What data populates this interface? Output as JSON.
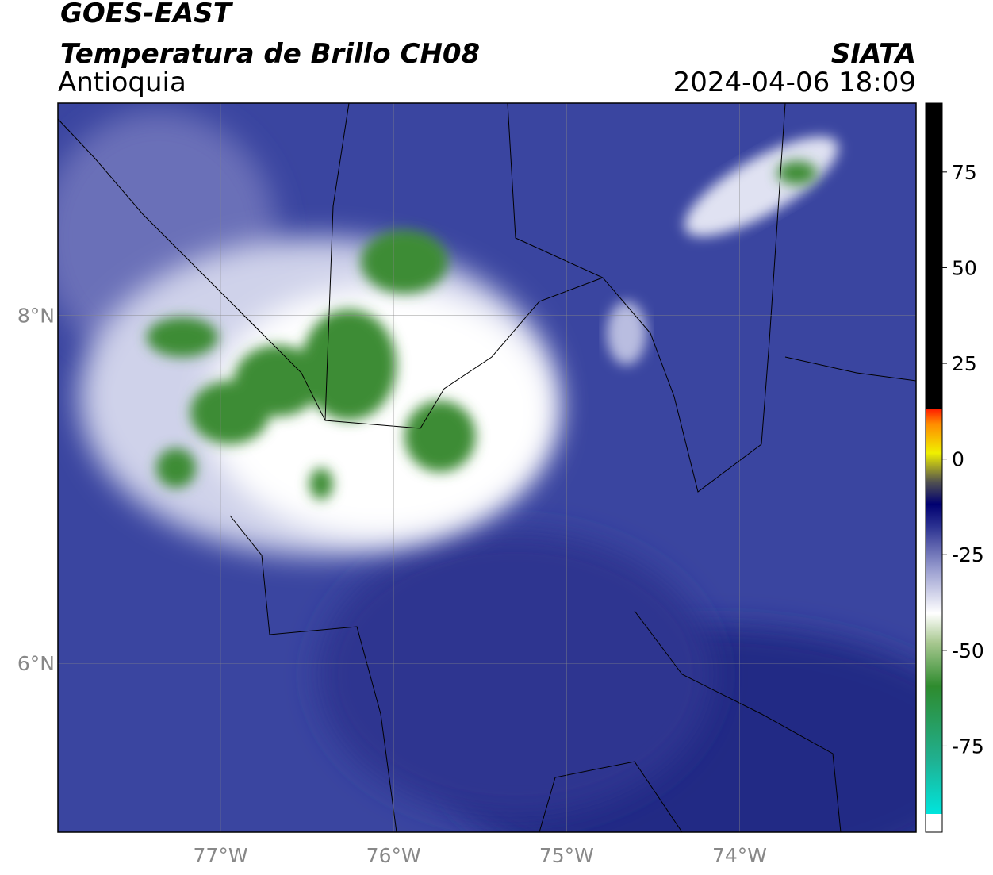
{
  "chart_data": {
    "type": "map",
    "title": "GOES-EAST",
    "subtitle": "Temperatura de Brillo CH08",
    "region": "Antioquia",
    "source": "SIATA",
    "datetime": "2024-04-06 18:09",
    "xlim": [
      -77.94,
      -72.98
    ],
    "ylim": [
      5.03,
      9.22
    ],
    "xticks": [
      {
        "value": -77,
        "label": "77°W"
      },
      {
        "value": -76,
        "label": "76°W"
      },
      {
        "value": -75,
        "label": "75°W"
      },
      {
        "value": -74,
        "label": "74°W"
      }
    ],
    "yticks": [
      {
        "value": 6,
        "label": "6°N"
      },
      {
        "value": 8,
        "label": "8°N"
      }
    ],
    "grid": true,
    "colorbar": {
      "lim": [
        -97.5,
        93
      ],
      "ticks": [
        75,
        50,
        25,
        0,
        -25,
        -50,
        -75
      ]
    }
  }
}
